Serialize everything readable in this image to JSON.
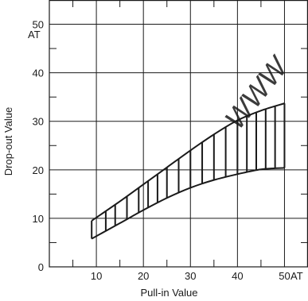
{
  "chart_data": {
    "type": "area",
    "xlabel": "Pull-in Value",
    "ylabel": "Drop-out Value",
    "x_unit": "AT",
    "y_unit": "AT",
    "xlim": [
      0,
      55
    ],
    "ylim": [
      0,
      55
    ],
    "x_ticks": [
      10,
      20,
      30,
      40,
      50
    ],
    "y_ticks": [
      0,
      10,
      20,
      30,
      40,
      50
    ],
    "grid": true,
    "series": [
      {
        "points": [
          {
            "x": 9,
            "y": 9.5
          },
          {
            "x": 15,
            "y": 13.5
          },
          {
            "x": 20,
            "y": 17
          },
          {
            "x": 25,
            "y": 20.5
          },
          {
            "x": 30,
            "y": 24
          },
          {
            "x": 35,
            "y": 27.3
          },
          {
            "x": 40,
            "y": 30.2
          },
          {
            "x": 45,
            "y": 32.2
          },
          {
            "x": 50,
            "y": 33.7
          }
        ]
      },
      {
        "points": [
          {
            "x": 9,
            "y": 5.8
          },
          {
            "x": 15,
            "y": 9
          },
          {
            "x": 20,
            "y": 11.7
          },
          {
            "x": 25,
            "y": 14.2
          },
          {
            "x": 30,
            "y": 16.3
          },
          {
            "x": 35,
            "y": 17.9
          },
          {
            "x": 40,
            "y": 19.1
          },
          {
            "x": 45,
            "y": 20.1
          },
          {
            "x": 50,
            "y": 20.4
          }
        ]
      }
    ],
    "hatch_x": [
      9,
      12,
      14,
      16.5,
      19,
      21,
      23,
      25,
      27.5,
      30,
      32.5,
      35,
      37.5,
      40,
      42,
      44,
      46,
      48,
      50
    ]
  },
  "watermark": "WWW"
}
